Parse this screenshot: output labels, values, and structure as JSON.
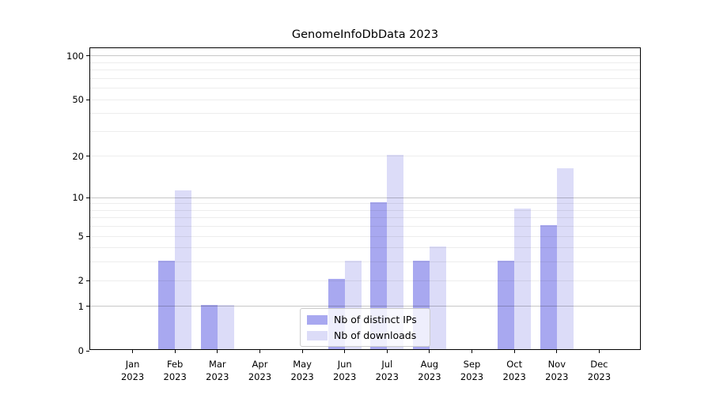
{
  "chart_data": {
    "type": "bar",
    "title": "GenomeInfoDbData 2023",
    "categories": [
      "Jan 2023",
      "Feb 2023",
      "Mar 2023",
      "Apr 2023",
      "May 2023",
      "Jun 2023",
      "Jul 2023",
      "Aug 2023",
      "Sep 2023",
      "Oct 2023",
      "Nov 2023",
      "Dec 2023"
    ],
    "series": [
      {
        "name": "Nb of distinct IPs",
        "color": "#a8a8f0",
        "values": [
          0,
          3,
          1,
          0,
          0,
          2,
          9,
          3,
          0,
          3,
          6,
          0
        ]
      },
      {
        "name": "Nb of downloads",
        "color": "#dcdcf8",
        "values": [
          0,
          11,
          1,
          0,
          0,
          3,
          20,
          4,
          0,
          8,
          16,
          0
        ]
      }
    ],
    "xlabel": "",
    "ylabel": "",
    "yscale": "log1p",
    "ylim": [
      0,
      113
    ],
    "yticks": [
      0,
      1,
      2,
      5,
      10,
      20,
      50,
      100
    ],
    "y_gridlines": {
      "major": [
        1,
        10,
        100
      ],
      "minor": [
        2,
        3,
        4,
        5,
        6,
        7,
        8,
        9,
        20,
        30,
        40,
        50,
        60,
        70,
        80,
        90
      ]
    },
    "grid": "horizontal",
    "grid_colors": {
      "major": "rgba(0,0,0,0.22)",
      "minor": "rgba(0,0,0,0.07)"
    },
    "legend_position": "inside-bottom-center",
    "axis_color": "#000000",
    "background_color": "#ffffff"
  },
  "legend": {
    "items": [
      {
        "label": "Nb of distinct IPs"
      },
      {
        "label": "Nb of downloads"
      }
    ]
  }
}
